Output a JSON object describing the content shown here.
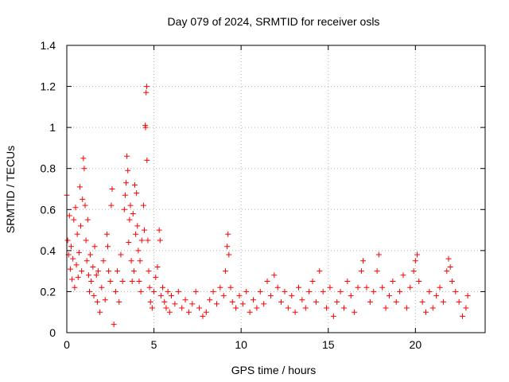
{
  "chart_data": {
    "type": "scatter",
    "title": "Day 079 of 2024, SRMTID for receiver osls",
    "xlabel": "GPS time / hours",
    "ylabel": "SRMTID / TECUs",
    "xlim": [
      0,
      24
    ],
    "ylim": [
      0,
      1.4
    ],
    "xticks": [
      0,
      5,
      10,
      15,
      20
    ],
    "yticks": [
      0,
      0.2,
      0.4,
      0.6,
      0.8,
      1,
      1.2,
      1.4
    ],
    "xtick_labels": [
      "0",
      "5",
      "10",
      "15",
      "20"
    ],
    "ytick_labels": [
      "0",
      "0.2",
      "0.4",
      "0.6",
      "0.8",
      "1",
      "1.2",
      "1.4"
    ],
    "grid": true,
    "marker": "+",
    "color": "#ff0000",
    "series": [
      {
        "name": "SRMTID",
        "points": [
          [
            0.0,
            0.67
          ],
          [
            0.05,
            0.45
          ],
          [
            0.1,
            0.38
          ],
          [
            0.15,
            0.57
          ],
          [
            0.2,
            0.31
          ],
          [
            0.25,
            0.42
          ],
          [
            0.3,
            0.26
          ],
          [
            0.35,
            0.36
          ],
          [
            0.4,
            0.55
          ],
          [
            0.45,
            0.22
          ],
          [
            0.5,
            0.61
          ],
          [
            0.55,
            0.33
          ],
          [
            0.6,
            0.48
          ],
          [
            0.65,
            0.27
          ],
          [
            0.7,
            0.39
          ],
          [
            0.75,
            0.71
          ],
          [
            0.8,
            0.52
          ],
          [
            0.85,
            0.3
          ],
          [
            0.9,
            0.65
          ],
          [
            0.95,
            0.85
          ],
          [
            1.0,
            0.8
          ],
          [
            1.05,
            0.62
          ],
          [
            1.1,
            0.45
          ],
          [
            1.15,
            0.35
          ],
          [
            1.2,
            0.55
          ],
          [
            1.25,
            0.28
          ],
          [
            1.3,
            0.2
          ],
          [
            1.35,
            0.38
          ],
          [
            1.4,
            0.25
          ],
          [
            1.5,
            0.32
          ],
          [
            1.55,
            0.18
          ],
          [
            1.6,
            0.42
          ],
          [
            1.7,
            0.28
          ],
          [
            1.75,
            0.15
          ],
          [
            1.8,
            0.3
          ],
          [
            1.9,
            0.1
          ],
          [
            2.0,
            0.22
          ],
          [
            2.1,
            0.35
          ],
          [
            2.2,
            0.16
          ],
          [
            2.3,
            0.48
          ],
          [
            2.35,
            0.42
          ],
          [
            2.4,
            0.3
          ],
          [
            2.5,
            0.25
          ],
          [
            2.55,
            0.62
          ],
          [
            2.6,
            0.7
          ],
          [
            2.7,
            0.04
          ],
          [
            2.8,
            0.2
          ],
          [
            2.9,
            0.3
          ],
          [
            3.0,
            0.15
          ],
          [
            3.1,
            0.38
          ],
          [
            3.2,
            0.25
          ],
          [
            3.3,
            0.6
          ],
          [
            3.35,
            0.67
          ],
          [
            3.4,
            0.73
          ],
          [
            3.45,
            0.86
          ],
          [
            3.5,
            0.79
          ],
          [
            3.55,
            0.44
          ],
          [
            3.6,
            0.55
          ],
          [
            3.65,
            0.62
          ],
          [
            3.7,
            0.35
          ],
          [
            3.75,
            0.25
          ],
          [
            3.8,
            0.58
          ],
          [
            3.85,
            0.3
          ],
          [
            3.9,
            0.72
          ],
          [
            3.95,
            0.48
          ],
          [
            4.0,
            0.68
          ],
          [
            4.05,
            0.52
          ],
          [
            4.1,
            0.4
          ],
          [
            4.15,
            0.25
          ],
          [
            4.2,
            0.35
          ],
          [
            4.25,
            0.2
          ],
          [
            4.3,
            0.45
          ],
          [
            4.4,
            0.62
          ],
          [
            4.45,
            0.5
          ],
          [
            4.5,
            1.01
          ],
          [
            4.52,
            1.0
          ],
          [
            4.55,
            1.17
          ],
          [
            4.58,
            1.2
          ],
          [
            4.6,
            0.84
          ],
          [
            4.65,
            0.45
          ],
          [
            4.7,
            0.3
          ],
          [
            4.75,
            0.22
          ],
          [
            4.8,
            0.15
          ],
          [
            4.9,
            0.12
          ],
          [
            5.0,
            0.2
          ],
          [
            5.1,
            0.27
          ],
          [
            5.2,
            0.32
          ],
          [
            5.3,
            0.5
          ],
          [
            5.35,
            0.45
          ],
          [
            5.4,
            0.18
          ],
          [
            5.5,
            0.22
          ],
          [
            5.6,
            0.15
          ],
          [
            5.7,
            0.12
          ],
          [
            5.8,
            0.2
          ],
          [
            5.9,
            0.1
          ],
          [
            6.0,
            0.18
          ],
          [
            6.2,
            0.14
          ],
          [
            6.4,
            0.2
          ],
          [
            6.6,
            0.12
          ],
          [
            6.8,
            0.16
          ],
          [
            7.0,
            0.1
          ],
          [
            7.2,
            0.14
          ],
          [
            7.4,
            0.2
          ],
          [
            7.6,
            0.12
          ],
          [
            7.8,
            0.08
          ],
          [
            8.0,
            0.1
          ],
          [
            8.2,
            0.16
          ],
          [
            8.4,
            0.2
          ],
          [
            8.6,
            0.14
          ],
          [
            8.8,
            0.22
          ],
          [
            9.0,
            0.18
          ],
          [
            9.1,
            0.3
          ],
          [
            9.2,
            0.42
          ],
          [
            9.25,
            0.48
          ],
          [
            9.3,
            0.38
          ],
          [
            9.4,
            0.22
          ],
          [
            9.5,
            0.15
          ],
          [
            9.7,
            0.12
          ],
          [
            9.9,
            0.18
          ],
          [
            10.1,
            0.14
          ],
          [
            10.3,
            0.2
          ],
          [
            10.5,
            0.1
          ],
          [
            10.7,
            0.16
          ],
          [
            10.9,
            0.12
          ],
          [
            11.1,
            0.2
          ],
          [
            11.3,
            0.14
          ],
          [
            11.5,
            0.25
          ],
          [
            11.7,
            0.18
          ],
          [
            11.9,
            0.28
          ],
          [
            12.1,
            0.22
          ],
          [
            12.3,
            0.15
          ],
          [
            12.5,
            0.2
          ],
          [
            12.7,
            0.12
          ],
          [
            12.9,
            0.18
          ],
          [
            13.1,
            0.1
          ],
          [
            13.3,
            0.22
          ],
          [
            13.5,
            0.16
          ],
          [
            13.7,
            0.12
          ],
          [
            13.9,
            0.2
          ],
          [
            14.1,
            0.25
          ],
          [
            14.3,
            0.15
          ],
          [
            14.5,
            0.3
          ],
          [
            14.7,
            0.2
          ],
          [
            14.9,
            0.12
          ],
          [
            15.1,
            0.22
          ],
          [
            15.3,
            0.08
          ],
          [
            15.5,
            0.15
          ],
          [
            15.7,
            0.2
          ],
          [
            15.9,
            0.12
          ],
          [
            16.1,
            0.25
          ],
          [
            16.3,
            0.18
          ],
          [
            16.5,
            0.1
          ],
          [
            16.7,
            0.22
          ],
          [
            16.9,
            0.3
          ],
          [
            17.0,
            0.35
          ],
          [
            17.2,
            0.22
          ],
          [
            17.4,
            0.15
          ],
          [
            17.6,
            0.2
          ],
          [
            17.8,
            0.3
          ],
          [
            17.9,
            0.38
          ],
          [
            18.1,
            0.22
          ],
          [
            18.3,
            0.12
          ],
          [
            18.5,
            0.18
          ],
          [
            18.7,
            0.25
          ],
          [
            18.9,
            0.15
          ],
          [
            19.1,
            0.2
          ],
          [
            19.3,
            0.28
          ],
          [
            19.5,
            0.12
          ],
          [
            19.7,
            0.22
          ],
          [
            19.9,
            0.3
          ],
          [
            20.0,
            0.35
          ],
          [
            20.1,
            0.38
          ],
          [
            20.2,
            0.25
          ],
          [
            20.4,
            0.15
          ],
          [
            20.6,
            0.1
          ],
          [
            20.8,
            0.2
          ],
          [
            21.0,
            0.12
          ],
          [
            21.2,
            0.18
          ],
          [
            21.4,
            0.22
          ],
          [
            21.6,
            0.15
          ],
          [
            21.8,
            0.3
          ],
          [
            21.9,
            0.36
          ],
          [
            22.0,
            0.32
          ],
          [
            22.1,
            0.25
          ],
          [
            22.3,
            0.2
          ],
          [
            22.5,
            0.15
          ],
          [
            22.7,
            0.08
          ],
          [
            22.9,
            0.12
          ],
          [
            23.0,
            0.18
          ]
        ]
      }
    ]
  }
}
